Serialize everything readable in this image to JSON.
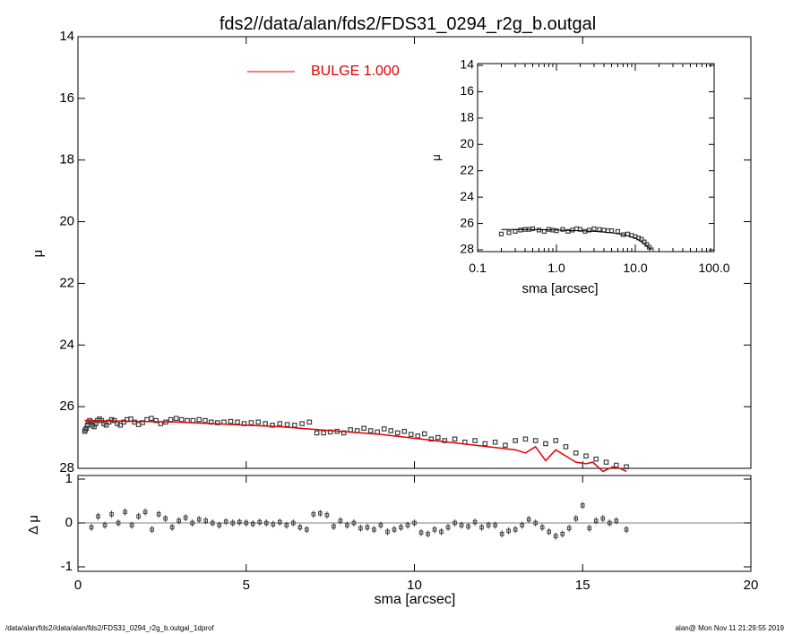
{
  "title": "fds2//data/alan/fds2/FDS31_0294_r2g_b.outgal",
  "footer": {
    "left": "/data/alan/fds2//data/alan/fds2/FDS31_0294_r2g_b.outgal_1dprof",
    "right": "alan@  Mon Nov 11 21:29:55 2019"
  },
  "colors": {
    "model": "#e00000",
    "data": "#404040",
    "axis": "#000000",
    "zero_line": "#808080"
  },
  "chart_data": [
    {
      "type": "scatter",
      "panel": "main",
      "xlabel": "",
      "ylabel": "μ",
      "xlim": [
        0,
        20
      ],
      "ylim": [
        28,
        14
      ],
      "y_inverted": true,
      "x_ticks": [
        0,
        5,
        10,
        15,
        20
      ],
      "y_ticks": [
        14,
        16,
        18,
        20,
        22,
        24,
        26,
        28
      ],
      "legend": {
        "label": "BULGE  1.000",
        "placement": "top-center"
      },
      "model_line": {
        "name": "BULGE  1.000",
        "x": [
          0.2,
          3.0,
          6.0,
          9.0,
          11.0,
          13.0,
          13.3,
          13.6,
          13.9,
          14.2,
          14.5,
          14.8,
          15.1,
          15.3,
          15.6,
          15.9,
          16.1,
          16.3
        ],
        "y": [
          26.45,
          26.5,
          26.65,
          26.9,
          27.15,
          27.4,
          27.5,
          27.3,
          27.75,
          27.4,
          27.6,
          27.8,
          27.85,
          27.8,
          28.1,
          27.95,
          28.0,
          28.1
        ]
      },
      "points": {
        "x": [
          0.2,
          0.22,
          0.25,
          0.28,
          0.31,
          0.35,
          0.39,
          0.43,
          0.48,
          0.53,
          0.58,
          0.64,
          0.7,
          0.77,
          0.84,
          0.92,
          1.0,
          1.08,
          1.17,
          1.26,
          1.36,
          1.46,
          1.57,
          1.68,
          1.8,
          1.92,
          2.05,
          2.18,
          2.32,
          2.46,
          2.61,
          2.76,
          2.92,
          3.08,
          3.25,
          3.42,
          3.6,
          3.78,
          3.96,
          4.15,
          4.34,
          4.54,
          4.74,
          4.94,
          5.15,
          5.36,
          5.57,
          5.78,
          6.0,
          6.22,
          6.44,
          6.66,
          6.88,
          7.1,
          7.3,
          7.5,
          7.7,
          7.9,
          8.1,
          8.3,
          8.5,
          8.7,
          8.9,
          9.1,
          9.3,
          9.5,
          9.7,
          9.9,
          10.1,
          10.3,
          10.5,
          10.7,
          10.9,
          11.2,
          11.5,
          11.8,
          12.1,
          12.4,
          12.7,
          13.0,
          13.3,
          13.6,
          13.9,
          14.2,
          14.5,
          14.8,
          15.1,
          15.4,
          15.7,
          16.0,
          16.3
        ],
        "y": [
          26.8,
          26.75,
          26.7,
          26.6,
          26.5,
          26.45,
          26.5,
          26.6,
          26.65,
          26.55,
          26.45,
          26.4,
          26.45,
          26.55,
          26.6,
          26.5,
          26.42,
          26.45,
          26.55,
          26.6,
          26.5,
          26.42,
          26.4,
          26.5,
          26.58,
          26.52,
          26.42,
          26.38,
          26.45,
          26.55,
          26.5,
          26.42,
          26.38,
          26.42,
          26.45,
          26.45,
          26.42,
          26.45,
          26.5,
          26.52,
          26.5,
          26.48,
          26.5,
          26.55,
          26.52,
          26.5,
          26.55,
          26.6,
          26.55,
          26.58,
          26.6,
          26.55,
          26.5,
          26.85,
          26.85,
          26.82,
          26.8,
          26.85,
          26.75,
          26.78,
          26.7,
          26.78,
          26.82,
          26.72,
          26.78,
          26.85,
          26.8,
          26.9,
          26.95,
          26.88,
          27.05,
          27.0,
          27.1,
          27.05,
          27.15,
          27.1,
          27.2,
          27.15,
          27.25,
          27.1,
          27.05,
          27.1,
          27.2,
          27.1,
          27.3,
          27.5,
          27.6,
          27.7,
          27.8,
          27.9,
          27.95
        ]
      }
    },
    {
      "type": "scatter",
      "panel": "residual",
      "xlabel": "sma [arcsec]",
      "ylabel": "Δ μ",
      "xlim": [
        0,
        20
      ],
      "ylim": [
        -1,
        1
      ],
      "x_ticks": [
        0,
        5,
        10,
        15,
        20
      ],
      "y_ticks": [
        -1,
        0,
        1
      ],
      "zero_line": true,
      "points": {
        "x": [
          0.4,
          0.6,
          0.8,
          1.0,
          1.2,
          1.4,
          1.6,
          1.8,
          2.0,
          2.2,
          2.4,
          2.6,
          2.8,
          3.0,
          3.2,
          3.4,
          3.6,
          3.8,
          4.0,
          4.2,
          4.4,
          4.6,
          4.8,
          5.0,
          5.2,
          5.4,
          5.6,
          5.8,
          6.0,
          6.2,
          6.4,
          6.6,
          6.8,
          7.0,
          7.2,
          7.4,
          7.6,
          7.8,
          8.0,
          8.2,
          8.4,
          8.6,
          8.8,
          9.0,
          9.2,
          9.4,
          9.6,
          9.8,
          10.0,
          10.2,
          10.4,
          10.6,
          10.8,
          11.0,
          11.2,
          11.4,
          11.6,
          11.8,
          12.0,
          12.2,
          12.4,
          12.6,
          12.8,
          13.0,
          13.2,
          13.4,
          13.6,
          13.8,
          14.0,
          14.2,
          14.4,
          14.6,
          14.8,
          15.0,
          15.2,
          15.4,
          15.6,
          15.8,
          16.0,
          16.3
        ],
        "y": [
          -0.1,
          0.15,
          -0.05,
          0.2,
          0.0,
          0.25,
          -0.05,
          0.15,
          0.25,
          -0.15,
          0.2,
          0.1,
          -0.1,
          0.05,
          0.12,
          0.0,
          0.08,
          0.05,
          0.0,
          -0.05,
          0.03,
          0.0,
          0.02,
          0.0,
          -0.02,
          0.02,
          0.0,
          -0.03,
          0.02,
          -0.05,
          0.0,
          -0.1,
          -0.15,
          0.2,
          0.22,
          0.18,
          -0.08,
          0.05,
          -0.05,
          0.0,
          -0.12,
          -0.1,
          -0.15,
          -0.05,
          -0.2,
          -0.15,
          -0.1,
          -0.05,
          0.0,
          -0.22,
          -0.25,
          -0.15,
          -0.2,
          -0.1,
          0.0,
          -0.05,
          -0.08,
          0.02,
          -0.1,
          -0.05,
          -0.05,
          -0.25,
          -0.18,
          -0.15,
          -0.05,
          0.08,
          0.0,
          -0.1,
          -0.2,
          -0.3,
          -0.25,
          -0.12,
          0.1,
          0.4,
          -0.12,
          0.05,
          0.1,
          0.0,
          0.05,
          -0.15
        ]
      }
    },
    {
      "type": "scatter",
      "panel": "inset",
      "xlabel": "sma [arcsec]",
      "ylabel": "μ",
      "xscale": "log",
      "xlim": [
        0.1,
        100.0
      ],
      "ylim": [
        28,
        14
      ],
      "y_inverted": true,
      "x_ticks": [
        "0.1",
        "1.0",
        "10.0",
        "100.0"
      ],
      "y_ticks": [
        14,
        16,
        18,
        20,
        22,
        24,
        26,
        28
      ],
      "model_line": {
        "x": [
          0.2,
          0.5,
          1.0,
          2.0,
          3.0,
          5.0,
          7.0,
          10.0,
          12.0,
          14.0,
          16.0
        ],
        "y": [
          26.45,
          26.45,
          26.5,
          26.55,
          26.6,
          26.7,
          26.85,
          27.1,
          27.4,
          27.7,
          28.0
        ]
      },
      "points": {
        "x": [
          0.2,
          0.25,
          0.3,
          0.35,
          0.4,
          0.45,
          0.5,
          0.6,
          0.7,
          0.8,
          0.9,
          1.0,
          1.2,
          1.4,
          1.6,
          1.8,
          2.0,
          2.3,
          2.6,
          3.0,
          3.5,
          4.0,
          4.5,
          5.0,
          6.0,
          7.0,
          8.0,
          9.0,
          10.0,
          11.0,
          12.0,
          13.0,
          14.0,
          15.0,
          16.0
        ],
        "y": [
          26.8,
          26.7,
          26.6,
          26.5,
          26.45,
          26.45,
          26.4,
          26.5,
          26.6,
          26.45,
          26.5,
          26.55,
          26.45,
          26.6,
          26.5,
          26.4,
          26.45,
          26.6,
          26.5,
          26.4,
          26.45,
          26.5,
          26.55,
          26.55,
          26.6,
          26.85,
          26.8,
          26.9,
          27.0,
          27.1,
          27.2,
          27.4,
          27.6,
          27.8,
          28.0
        ]
      }
    }
  ]
}
